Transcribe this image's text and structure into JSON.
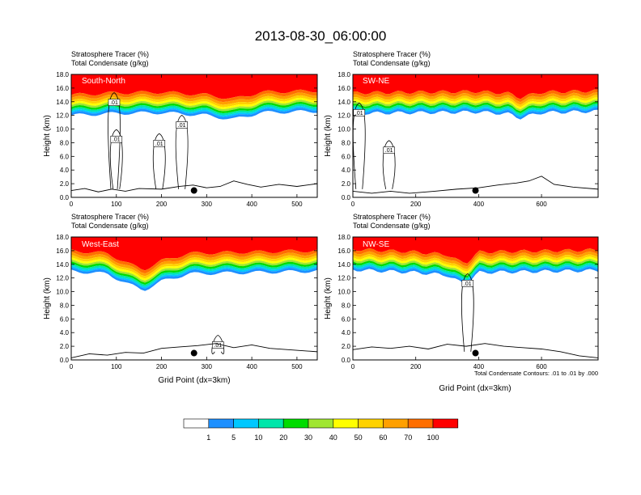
{
  "figure": {
    "title": "2013-08-30_06:00:00",
    "contour_note": "Total Condensate Contours: .01 to .01 by .000",
    "colors": {
      "bins": [
        "#ffffff",
        "#1e90ff",
        "#00c8ff",
        "#00e6aa",
        "#00dc00",
        "#a0e632",
        "#ffff00",
        "#ffd200",
        "#ffa000",
        "#ff6e00",
        "#ff0000"
      ],
      "contour": "#000000",
      "dot": "#000000"
    }
  },
  "legend": {
    "tick_labels": [
      "1",
      "5",
      "10",
      "20",
      "30",
      "40",
      "50",
      "60",
      "70",
      "100"
    ]
  },
  "chart_data": [
    {
      "type": "heatmap",
      "panel_label": "South-North",
      "header_line1": "Stratosphere Tracer   (%)",
      "header_line2": "Total Condensate   (g/kg)",
      "ylabel": "Height (km)",
      "xlabel": "",
      "xlim": [
        0,
        545
      ],
      "ylim": [
        0,
        18
      ],
      "x_ticks": [
        0,
        100,
        200,
        300,
        400,
        500
      ],
      "y_ticks": [
        "0.0",
        "2.0",
        "4.0",
        "6.0",
        "8.0",
        "10.0",
        "12.0",
        "14.0",
        "16.0",
        "18.0"
      ],
      "tropopause_base_km": [
        [
          0,
          12.0
        ],
        [
          100,
          12.3
        ],
        [
          200,
          12.4
        ],
        [
          300,
          12.0
        ],
        [
          360,
          11.4
        ],
        [
          420,
          12.4
        ],
        [
          545,
          12.6
        ]
      ],
      "contour_label": ".01",
      "contour_label_points": [
        [
          95,
          13.9
        ],
        [
          100,
          8.5
        ],
        [
          195,
          7.9
        ],
        [
          245,
          10.6
        ]
      ],
      "terrain_km": [
        [
          0,
          1.0
        ],
        [
          30,
          1.3
        ],
        [
          60,
          0.8
        ],
        [
          90,
          1.2
        ],
        [
          120,
          0.9
        ],
        [
          150,
          1.3
        ],
        [
          200,
          1.2
        ],
        [
          240,
          1.6
        ],
        [
          270,
          1.8
        ],
        [
          300,
          1.4
        ],
        [
          330,
          1.6
        ],
        [
          360,
          2.4
        ],
        [
          390,
          1.9
        ],
        [
          420,
          1.5
        ],
        [
          460,
          1.9
        ],
        [
          500,
          1.6
        ],
        [
          545,
          2.0
        ]
      ],
      "location_dot": [
        272,
        1.0
      ]
    },
    {
      "type": "heatmap",
      "panel_label": "SW-NE",
      "header_line1": "Stratosphere Tracer   (%)",
      "header_line2": "Total Condensate   (g/kg)",
      "ylabel": "Height (km)",
      "xlabel": "",
      "xlim": [
        0,
        780
      ],
      "ylim": [
        0,
        18
      ],
      "x_ticks": [
        0,
        200,
        400,
        600
      ],
      "y_ticks": [
        "0.0",
        "2.0",
        "4.0",
        "6.0",
        "8.0",
        "10.0",
        "12.0",
        "14.0",
        "16.0",
        "18.0"
      ],
      "tropopause_base_km": [
        [
          0,
          12.3
        ],
        [
          200,
          12.4
        ],
        [
          400,
          12.5
        ],
        [
          500,
          12.2
        ],
        [
          530,
          11.6
        ],
        [
          600,
          12.4
        ],
        [
          780,
          12.6
        ]
      ],
      "contour_label": ".01",
      "contour_label_points": [
        [
          20,
          12.4
        ],
        [
          115,
          6.9
        ]
      ],
      "terrain_km": [
        [
          0,
          0.9
        ],
        [
          60,
          0.6
        ],
        [
          120,
          0.9
        ],
        [
          180,
          0.6
        ],
        [
          260,
          0.9
        ],
        [
          330,
          1.2
        ],
        [
          400,
          1.4
        ],
        [
          460,
          1.8
        ],
        [
          520,
          2.1
        ],
        [
          560,
          2.4
        ],
        [
          600,
          3.1
        ],
        [
          640,
          1.9
        ],
        [
          700,
          1.5
        ],
        [
          780,
          1.2
        ]
      ],
      "location_dot": [
        390,
        1.0
      ]
    },
    {
      "type": "heatmap",
      "panel_label": "West-East",
      "header_line1": "Stratosphere Tracer   (%)",
      "header_line2": "Total Condensate   (g/kg)",
      "ylabel": "Height (km)",
      "xlabel": "Grid Point (dx=3km)",
      "xlim": [
        0,
        545
      ],
      "ylim": [
        0,
        18
      ],
      "x_ticks": [
        0,
        100,
        200,
        300,
        400,
        500
      ],
      "y_ticks": [
        "0.0",
        "2.0",
        "4.0",
        "6.0",
        "8.0",
        "10.0",
        "12.0",
        "14.0",
        "16.0",
        "18.0"
      ],
      "tropopause_base_km": [
        [
          0,
          13.0
        ],
        [
          80,
          12.6
        ],
        [
          130,
          11.0
        ],
        [
          160,
          10.2
        ],
        [
          200,
          11.5
        ],
        [
          260,
          12.6
        ],
        [
          545,
          13.0
        ]
      ],
      "contour_label": ".01",
      "contour_label_points": [
        [
          325,
          2.2
        ]
      ],
      "terrain_km": [
        [
          0,
          0.3
        ],
        [
          40,
          0.9
        ],
        [
          80,
          0.7
        ],
        [
          120,
          1.1
        ],
        [
          160,
          1.0
        ],
        [
          200,
          1.7
        ],
        [
          240,
          1.9
        ],
        [
          280,
          2.1
        ],
        [
          320,
          2.4
        ],
        [
          360,
          1.8
        ],
        [
          400,
          2.2
        ],
        [
          440,
          1.7
        ],
        [
          480,
          1.5
        ],
        [
          545,
          1.2
        ]
      ],
      "location_dot": [
        272,
        1.0
      ]
    },
    {
      "type": "heatmap",
      "panel_label": "NW-SE",
      "header_line1": "Stratosphere Tracer   (%)",
      "header_line2": "Total Condensate   (g/kg)",
      "ylabel": "Height (km)",
      "xlabel": "Grid Point (dx=3km)",
      "xlim": [
        0,
        780
      ],
      "ylim": [
        0,
        18
      ],
      "x_ticks": [
        0,
        200,
        400,
        600
      ],
      "y_ticks": [
        "0.0",
        "2.0",
        "4.0",
        "6.0",
        "8.0",
        "10.0",
        "12.0",
        "14.0",
        "16.0",
        "18.0"
      ],
      "tropopause_base_km": [
        [
          0,
          13.2
        ],
        [
          200,
          12.8
        ],
        [
          300,
          12.4
        ],
        [
          340,
          11.4
        ],
        [
          360,
          11.2
        ],
        [
          400,
          12.8
        ],
        [
          780,
          13.1
        ]
      ],
      "contour_label": ".01",
      "contour_label_points": [
        [
          365,
          11.2
        ]
      ],
      "terrain_km": [
        [
          0,
          1.5
        ],
        [
          60,
          1.9
        ],
        [
          120,
          1.7
        ],
        [
          180,
          2.0
        ],
        [
          240,
          1.6
        ],
        [
          300,
          2.3
        ],
        [
          360,
          2.0
        ],
        [
          420,
          2.4
        ],
        [
          480,
          2.0
        ],
        [
          540,
          1.8
        ],
        [
          600,
          1.6
        ],
        [
          660,
          1.2
        ],
        [
          720,
          0.6
        ],
        [
          780,
          0.3
        ]
      ],
      "location_dot": [
        390,
        1.0
      ]
    }
  ]
}
